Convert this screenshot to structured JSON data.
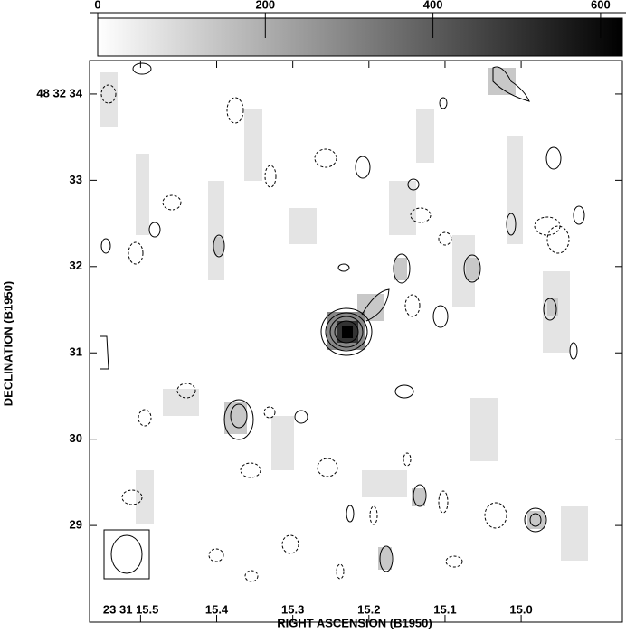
{
  "chart_data": {
    "type": "image",
    "xlabel": "RIGHT ASCENSION (B1950)",
    "ylabel": "DECLINATION (B1950)",
    "xlim": [
      15.567,
      14.867
    ],
    "xticks": [
      {
        "value": 15.5,
        "label": "23 31 15.5"
      },
      15.4,
      15.3,
      15.2,
      15.1,
      {
        "value": 15,
        "label": "15.0"
      }
    ],
    "ylim": [
      27.88,
      34.387
    ],
    "yticks": [
      {
        "value": 34,
        "label": "48 32 34"
      },
      33,
      32,
      31,
      30,
      29
    ],
    "clim": [
      0,
      626
    ],
    "cticks": [
      0,
      200,
      400,
      600
    ],
    "cmap": [
      "#ffffff",
      "#000000"
    ]
  }
}
